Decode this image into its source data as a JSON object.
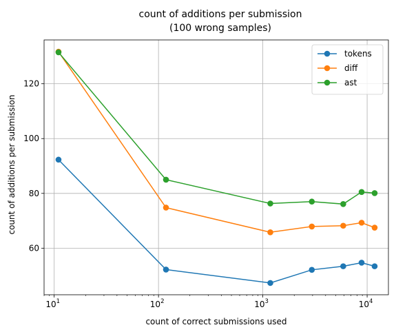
{
  "chart_data": {
    "type": "line",
    "title": "count of additions per submission",
    "subtitle": "(100 wrong samples)",
    "xlabel": "count of correct submissions used",
    "ylabel": "count of additions per submission",
    "xscale": "log",
    "xlim": [
      8,
      16000
    ],
    "ylim": [
      43,
      136
    ],
    "x": [
      11,
      118,
      1180,
      2950,
      5900,
      8850,
      11800
    ],
    "xticks": [
      10,
      100,
      1000,
      10000
    ],
    "xtick_labels": [
      {
        "base": "10",
        "exp": "1"
      },
      {
        "base": "10",
        "exp": "2"
      },
      {
        "base": "10",
        "exp": "3"
      },
      {
        "base": "10",
        "exp": "4"
      }
    ],
    "yticks": [
      60,
      80,
      100,
      120
    ],
    "ytick_labels": [
      "60",
      "80",
      "100",
      "120"
    ],
    "grid": true,
    "legend_position": "top-right",
    "series": [
      {
        "name": "tokens",
        "color": "#1f77b4",
        "values": [
          92.3,
          52.2,
          47.3,
          52.1,
          53.4,
          54.7,
          53.4
        ]
      },
      {
        "name": "diff",
        "color": "#ff7f0e",
        "values": [
          131.7,
          74.8,
          65.8,
          67.9,
          68.2,
          69.3,
          67.5
        ]
      },
      {
        "name": "ast",
        "color": "#2ca02c",
        "values": [
          131.5,
          85.0,
          76.3,
          77.0,
          76.1,
          80.5,
          80.1
        ]
      }
    ]
  }
}
